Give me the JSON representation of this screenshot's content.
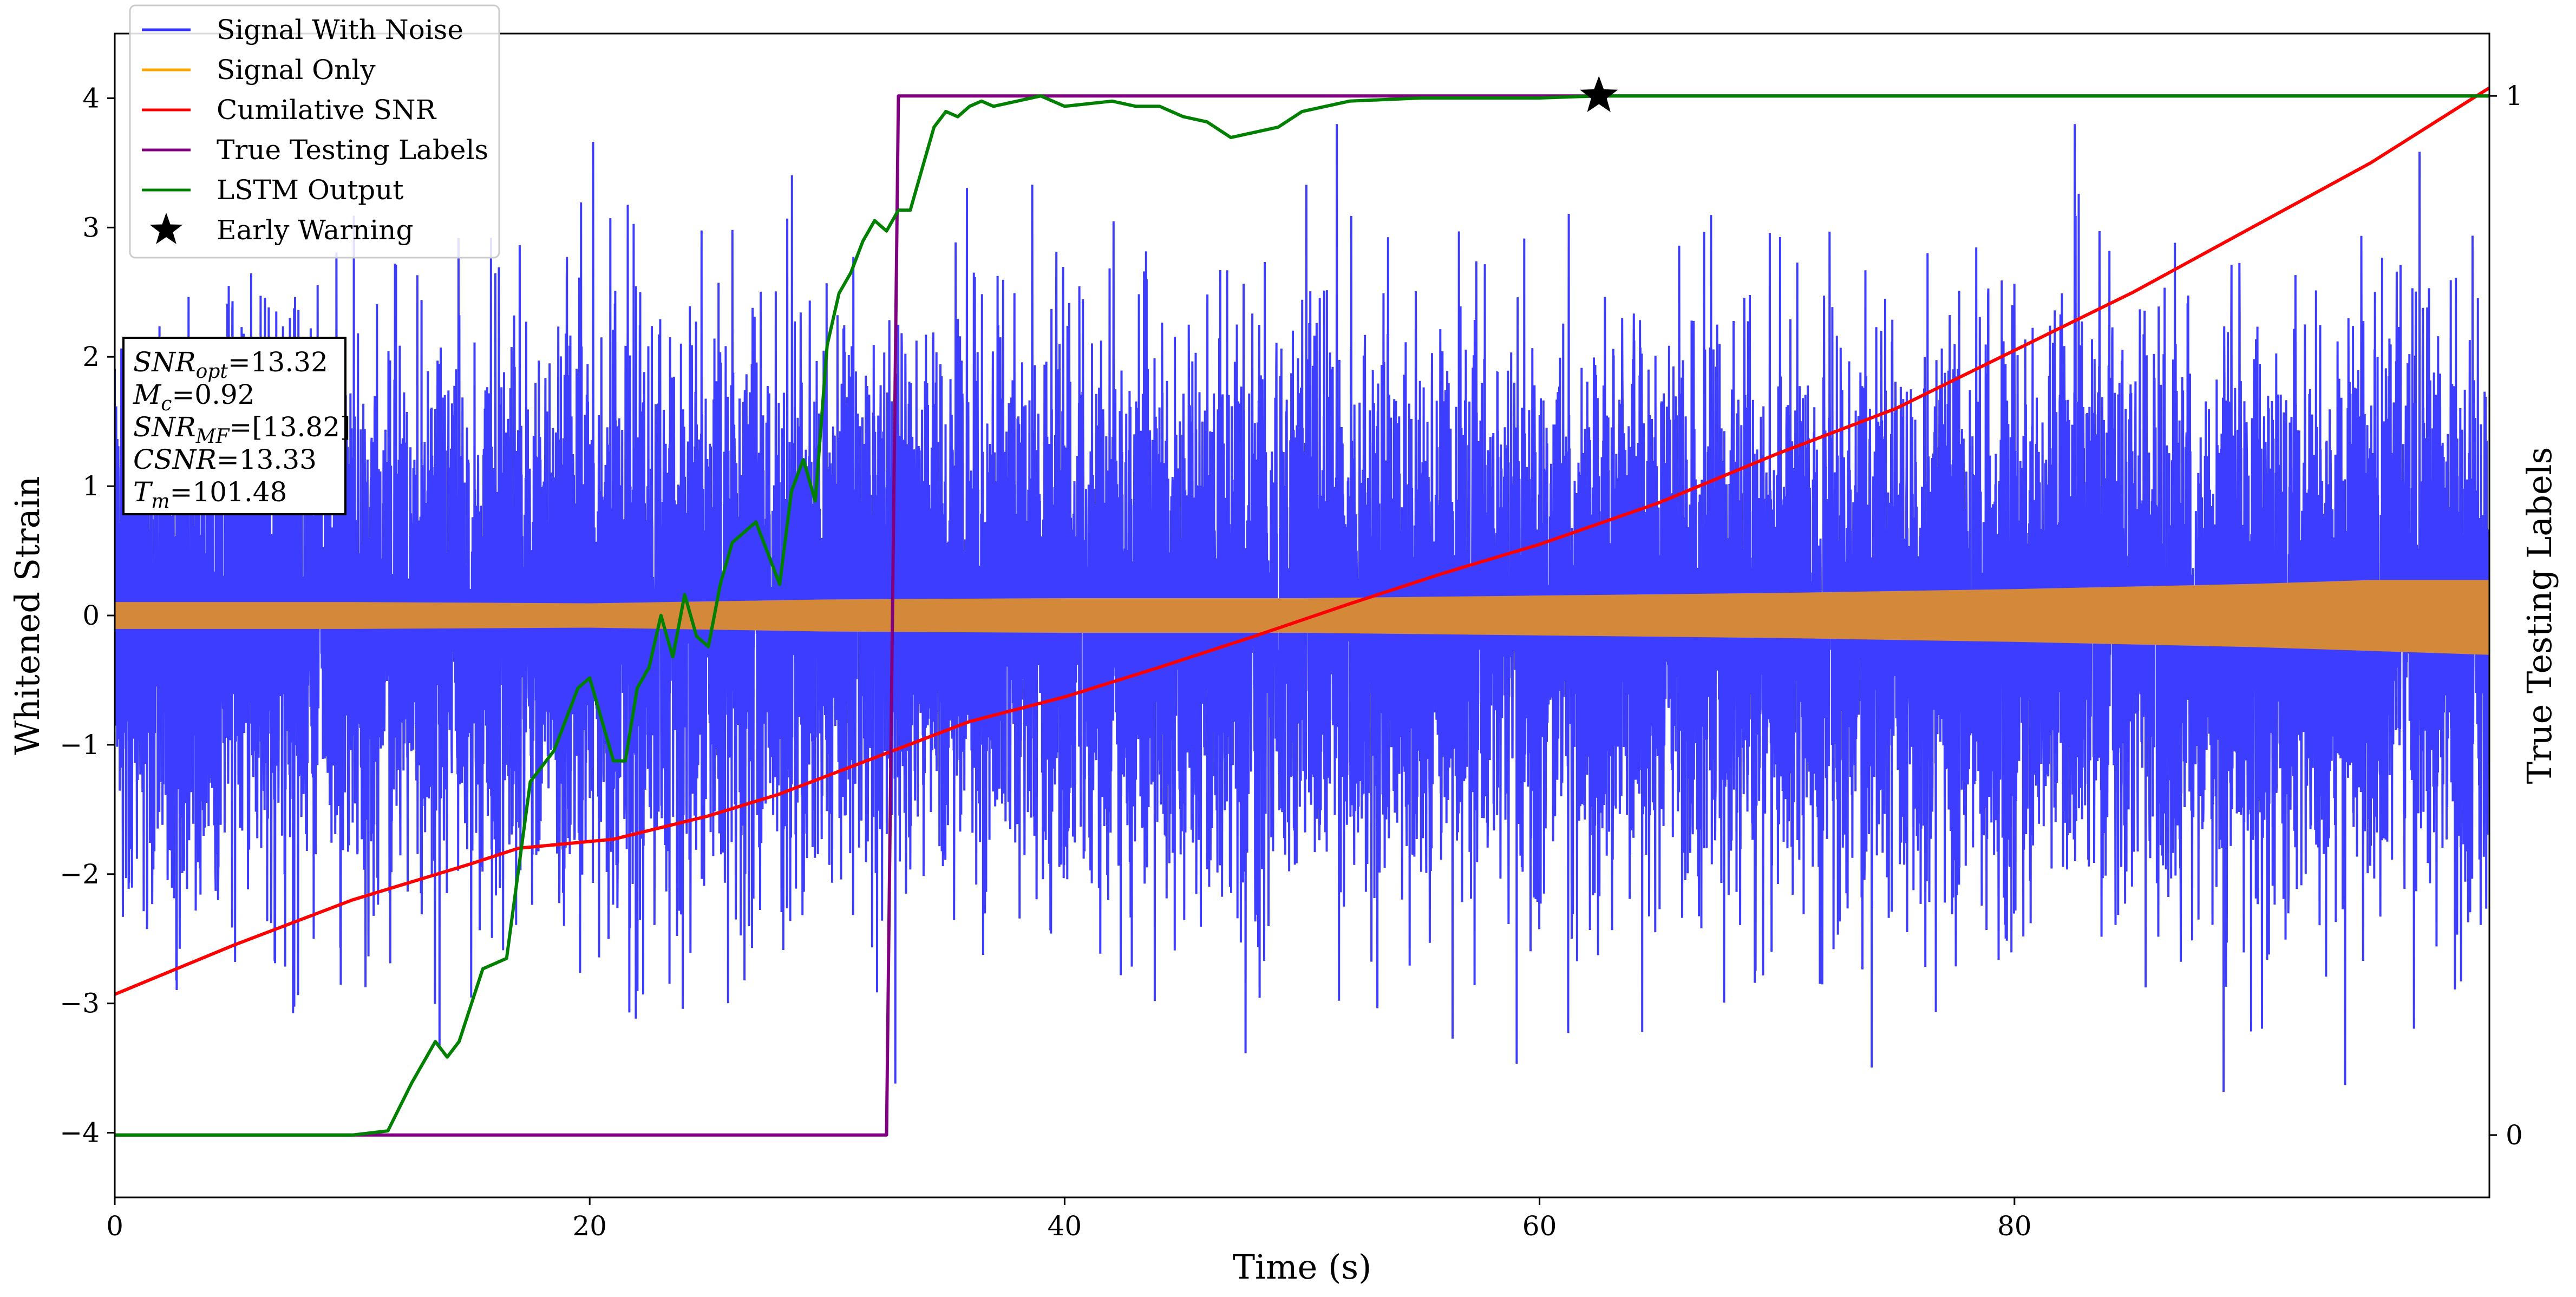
{
  "chart_data": {
    "type": "line",
    "title": "",
    "xlabel": "Time (s)",
    "ylabel": "Whitened Strain",
    "y2label": "True Testing Labels",
    "xlim": [
      0,
      100
    ],
    "ylim": [
      -4.5,
      4.5
    ],
    "y2lim": [
      -0.06,
      1.06
    ],
    "xticks": [
      0,
      20,
      40,
      60,
      80
    ],
    "xtick_labels": [
      "0",
      "20",
      "40",
      "60",
      "80"
    ],
    "yticks": [
      -4,
      -3,
      -2,
      -1,
      0,
      1,
      2,
      3,
      4
    ],
    "ytick_labels": [
      "−4",
      "−3",
      "−2",
      "−1",
      "0",
      "1",
      "2",
      "3",
      "4"
    ],
    "y2ticks": [
      0,
      1
    ],
    "y2tick_labels": [
      "0",
      "1"
    ],
    "grid": false,
    "legend_position": "top-left",
    "colors": {
      "signal_with_noise": "#3333ff",
      "signal_only": "#ffa500",
      "signal_band_fill": "#d4883a",
      "cumulative_snr": "#ff0000",
      "true_labels": "#800080",
      "lstm_output": "#008000",
      "early_warning": "#000000"
    },
    "series": [
      {
        "name": "Signal With Noise",
        "axis": "left",
        "style": "noise",
        "description_values": {
          "typical_amplitude": 1.6,
          "max_observed": 3.8,
          "min_observed": -4.1
        }
      },
      {
        "name": "Signal Only",
        "axis": "left",
        "style": "band",
        "x": [
          0,
          10,
          20,
          30,
          40,
          50,
          60,
          70,
          80,
          90,
          95,
          100
        ],
        "upper": [
          0.1,
          0.1,
          0.09,
          0.12,
          0.13,
          0.13,
          0.15,
          0.17,
          0.2,
          0.24,
          0.27,
          0.27
        ],
        "lower": [
          -0.1,
          -0.1,
          -0.09,
          -0.12,
          -0.13,
          -0.13,
          -0.15,
          -0.17,
          -0.2,
          -0.24,
          -0.27,
          -0.3
        ]
      },
      {
        "name": "Cumilative SNR",
        "axis": "left",
        "x": [
          0,
          5,
          10,
          15,
          17,
          21,
          25,
          28,
          32,
          36,
          40,
          44,
          48,
          52,
          56,
          60,
          65,
          70,
          75,
          80,
          85,
          90,
          95,
          100
        ],
        "y": [
          -2.93,
          -2.55,
          -2.2,
          -1.92,
          -1.8,
          -1.73,
          -1.55,
          -1.38,
          -1.1,
          -0.82,
          -0.63,
          -0.4,
          -0.16,
          0.09,
          0.33,
          0.55,
          0.87,
          1.25,
          1.6,
          2.05,
          2.5,
          3.0,
          3.5,
          4.08
        ]
      },
      {
        "name": "True Testing Labels",
        "axis": "right",
        "x": [
          0,
          32.5,
          33.0,
          100
        ],
        "y": [
          0,
          0,
          1,
          1
        ]
      },
      {
        "name": "LSTM Output",
        "axis": "right",
        "x": [
          0,
          10,
          11.5,
          12.5,
          13.5,
          14.0,
          14.5,
          15.5,
          16.5,
          17.5,
          18.5,
          19.5,
          20.0,
          21.0,
          21.5,
          22.0,
          22.5,
          23.0,
          23.5,
          24.0,
          24.5,
          25.0,
          25.5,
          26.0,
          26.5,
          27.0,
          27.5,
          28.0,
          28.5,
          29.0,
          29.5,
          30.0,
          30.5,
          31.0,
          31.5,
          32.0,
          32.5,
          33.0,
          33.5,
          34.0,
          34.5,
          35.0,
          35.5,
          36.0,
          36.5,
          37.0,
          38.0,
          39.0,
          40.0,
          42.0,
          43.0,
          44.0,
          45.0,
          46.0,
          47.0,
          48.0,
          49.0,
          50.0,
          52.0,
          55.0,
          60.0,
          62.5,
          65.0,
          70.0,
          80.0,
          90.0,
          100.0
        ],
        "y": [
          0.0,
          0.0,
          0.004,
          0.05,
          0.09,
          0.075,
          0.09,
          0.16,
          0.17,
          0.34,
          0.37,
          0.43,
          0.44,
          0.36,
          0.36,
          0.43,
          0.45,
          0.5,
          0.46,
          0.52,
          0.48,
          0.47,
          0.53,
          0.57,
          0.58,
          0.59,
          0.56,
          0.53,
          0.62,
          0.65,
          0.61,
          0.76,
          0.81,
          0.83,
          0.86,
          0.88,
          0.87,
          0.89,
          0.89,
          0.93,
          0.97,
          0.985,
          0.98,
          0.99,
          0.995,
          0.99,
          0.995,
          1.0,
          0.99,
          0.995,
          0.99,
          0.99,
          0.98,
          0.975,
          0.96,
          0.965,
          0.97,
          0.985,
          0.995,
          0.998,
          0.998,
          1.0,
          1.0,
          1.0,
          1.0,
          1.0,
          1.0
        ]
      }
    ],
    "markers": [
      {
        "name": "Early Warning",
        "axis": "right",
        "x": 62.5,
        "y": 1.0,
        "symbol": "star"
      }
    ],
    "legend": [
      "Signal With Noise",
      "Signal Only",
      "Cumilative SNR",
      "True Testing Labels",
      "LSTM Output",
      "Early Warning"
    ],
    "annotation_box": {
      "lines": [
        {
          "base": "SNR",
          "sub": "opt",
          "rest": "=13.32"
        },
        {
          "base": "M",
          "sub": "c",
          "rest": "=0.92"
        },
        {
          "base": "SNR",
          "sub": "MF",
          "rest": "=[13.82]"
        },
        {
          "base": "CSNR",
          "sub": "",
          "rest": "=13.33"
        },
        {
          "base": "T",
          "sub": "m",
          "rest": "=101.48"
        }
      ]
    }
  }
}
